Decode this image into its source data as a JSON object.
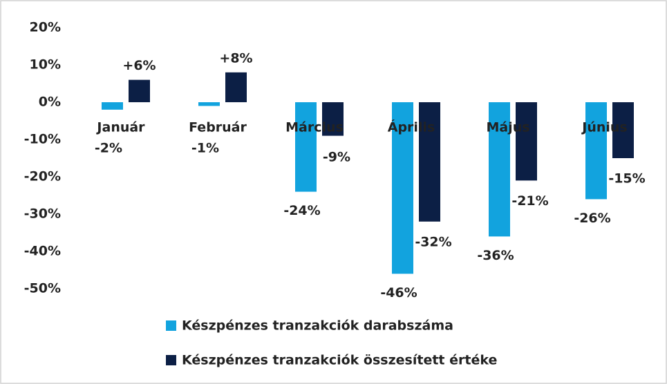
{
  "chart_data": {
    "type": "bar",
    "categories": [
      "Január",
      "Február",
      "Március",
      "Április",
      "Május",
      "Június"
    ],
    "series": [
      {
        "name": "Készpénzes tranzakciók darabszáma",
        "color": "#12a3de",
        "values": [
          -2,
          -1,
          -24,
          -46,
          -36,
          -26
        ],
        "value_labels": [
          "-2%",
          "-1%",
          "-24%",
          "-46%",
          "-36%",
          "-26%"
        ]
      },
      {
        "name": "Készpénzes tranzakciók összesített értéke",
        "color": "#0c1f45",
        "values": [
          6,
          8,
          -9,
          -32,
          -21,
          -15
        ],
        "value_labels": [
          "+6%",
          "+8%",
          "-9%",
          "-32%",
          "-21%",
          "-15%"
        ]
      }
    ],
    "ylim": [
      -55,
      22
    ],
    "yticks": [
      {
        "value": 20,
        "label": "20%"
      },
      {
        "value": 10,
        "label": "10%"
      },
      {
        "value": 0,
        "label": "0%"
      },
      {
        "value": -10,
        "label": "-10%"
      },
      {
        "value": -20,
        "label": "-20%"
      },
      {
        "value": -30,
        "label": "-30%"
      },
      {
        "value": -40,
        "label": "-40%"
      },
      {
        "value": -50,
        "label": "-50%"
      }
    ],
    "grid": false
  }
}
